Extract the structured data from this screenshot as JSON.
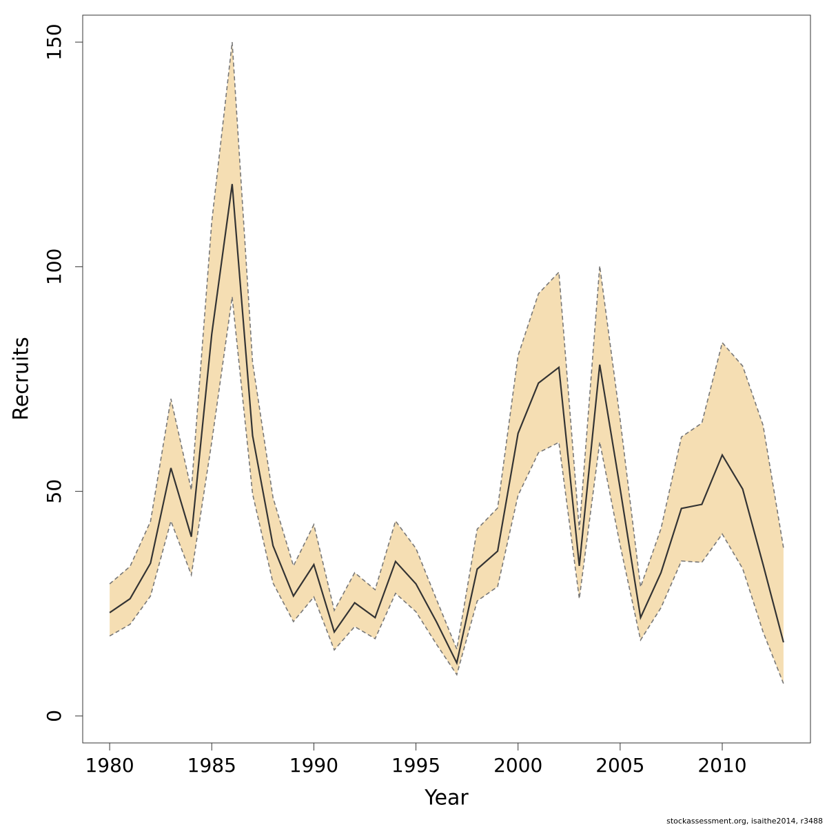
{
  "chart_data": {
    "type": "line",
    "xlabel": "Year",
    "ylabel": "Recruits",
    "footnote": "stockassessment.org, isaithe2014, r3488",
    "x": [
      1980,
      1981,
      1982,
      1983,
      1984,
      1985,
      1986,
      1987,
      1988,
      1989,
      1990,
      1991,
      1992,
      1993,
      1994,
      1995,
      1996,
      1997,
      1998,
      1999,
      2000,
      2001,
      2002,
      2003,
      2004,
      2005,
      2006,
      2007,
      2008,
      2009,
      2010,
      2011,
      2012,
      2013
    ],
    "values": [
      23.0,
      26.1,
      34.0,
      55.2,
      39.9,
      85,
      118.4,
      62.4,
      37.9,
      26.7,
      33.7,
      18.7,
      25.2,
      21.9,
      34.4,
      29.4,
      21,
      11.8,
      32.7,
      36.7,
      62.9,
      74.1,
      77.6,
      33.4,
      78.2,
      50.6,
      21.9,
      31.9,
      46.2,
      47.1,
      58.1,
      50.5,
      33.7,
      16.4
    ],
    "upper": [
      29.4,
      33.3,
      43.3,
      70.6,
      50.3,
      110,
      150,
      78.7,
      48.6,
      33.4,
      42.6,
      23.5,
      31.9,
      28.1,
      43.4,
      37.3,
      26,
      14.9,
      41.6,
      46.3,
      80.2,
      94.0,
      98.8,
      41.4,
      100.2,
      66,
      28.7,
      41.7,
      62.1,
      65.2,
      83.1,
      77.9,
      64.7,
      37.4
    ],
    "lower": [
      17.8,
      20.4,
      26.7,
      43.4,
      31.4,
      61,
      93.3,
      49.4,
      29.6,
      21.0,
      26.5,
      14.7,
      19.9,
      17.2,
      27.3,
      23.2,
      16,
      9.2,
      25.6,
      28.8,
      49.1,
      58.6,
      60.9,
      26.1,
      61.0,
      38,
      16.9,
      24.1,
      34.5,
      34.2,
      40.5,
      32.8,
      18.7,
      7.2
    ],
    "line_color": "#333333",
    "band_color": "#f5deb3",
    "band_edge_color": "#777777",
    "xlim": [
      1978.68,
      2014.32
    ],
    "xticks": [
      1980,
      1985,
      1990,
      1995,
      2000,
      2005,
      2010
    ],
    "ylim": [
      -6,
      156
    ],
    "yticks": [
      0,
      50,
      100,
      150
    ]
  }
}
